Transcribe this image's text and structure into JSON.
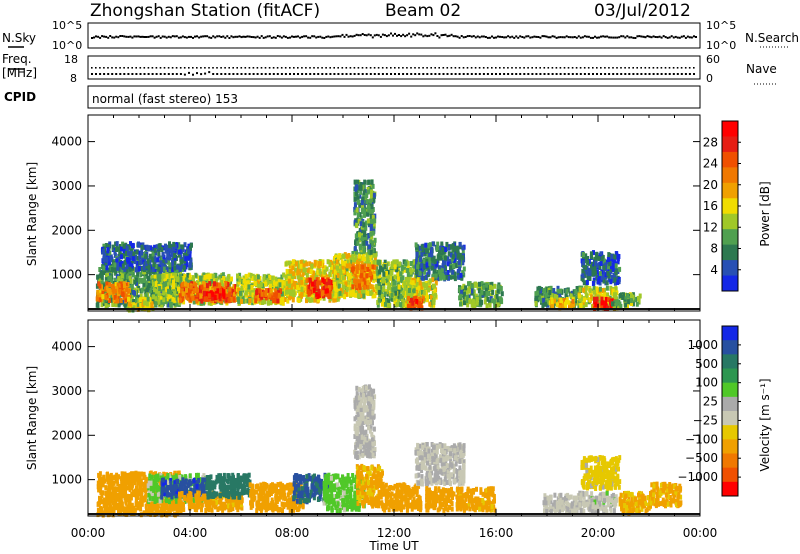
{
  "header": {
    "station_title": "Zhongshan Station (fitACF)",
    "beam_label": "Beam 02",
    "date": "03/Jul/2012"
  },
  "noise_panel": {
    "left_label": "N.Sky",
    "right_label": "N.Search",
    "tick_top": "10^5",
    "tick_bottom": "10^0"
  },
  "freq_panel": {
    "left_label_line1": "Freq.",
    "left_label_line2": "[MHz]",
    "left_tick_top": "18",
    "left_tick_bottom": "8",
    "right_label": "Nave",
    "right_tick_top": "60",
    "right_tick_bottom": "0"
  },
  "cpid_panel": {
    "label": "CPID",
    "mode_text": "normal (fast stereo) 153"
  },
  "colors": {
    "power_scale": [
      "#1428e6",
      "#2850b4",
      "#2d7850",
      "#50a050",
      "#a0c828",
      "#f0dc00",
      "#f0a000",
      "#f07800",
      "#f05000",
      "#e61e14",
      "#ff0000"
    ],
    "velocity_scale": [
      "#ff0000",
      "#f05000",
      "#f07800",
      "#f0a000",
      "#e6c800",
      "#c8c8b4",
      "#aaaaaa",
      "#50c828",
      "#2d9650",
      "#287864",
      "#2850a0",
      "#1428e6"
    ]
  },
  "chart_data": [
    {
      "type": "heatmap",
      "name": "power",
      "ylabel": "Slant Range [km]",
      "xlabel": "",
      "x_ticks": [
        "00:00",
        "04:00",
        "08:00",
        "12:00",
        "16:00",
        "20:00",
        "00:00"
      ],
      "y_ticks": [
        "1000",
        "2000",
        "3000",
        "4000"
      ],
      "ylim": [
        180,
        4600
      ],
      "colorbar_label": "Power [dB]",
      "colorbar_ticks": [
        "4",
        "8",
        "12",
        "16",
        "20",
        "24",
        "28"
      ],
      "colorbar_range": [
        0,
        30
      ],
      "clusters": [
        {
          "t0": 0.3,
          "t1": 3.6,
          "r0": 300,
          "r1": 1150,
          "v": 9
        },
        {
          "t0": 0.3,
          "t1": 1.6,
          "r0": 400,
          "r1": 800,
          "v": 20
        },
        {
          "t0": 1.5,
          "t1": 2.6,
          "r0": 200,
          "r1": 450,
          "v": 14
        },
        {
          "t0": 2.5,
          "t1": 5.6,
          "r0": 350,
          "r1": 1000,
          "v": 12
        },
        {
          "t0": 3.5,
          "t1": 5.8,
          "r0": 400,
          "r1": 800,
          "v": 22
        },
        {
          "t0": 4.5,
          "t1": 5.3,
          "r0": 450,
          "r1": 650,
          "v": 27
        },
        {
          "t0": 5.8,
          "t1": 7.7,
          "r0": 350,
          "r1": 1000,
          "v": 13
        },
        {
          "t0": 6.5,
          "t1": 7.5,
          "r0": 400,
          "r1": 650,
          "v": 22
        },
        {
          "t0": 7.7,
          "t1": 9.8,
          "r0": 400,
          "r1": 1300,
          "v": 15
        },
        {
          "t0": 8.5,
          "t1": 9.5,
          "r0": 500,
          "r1": 900,
          "v": 25
        },
        {
          "t0": 9.6,
          "t1": 11.3,
          "r0": 500,
          "r1": 1500,
          "v": 14
        },
        {
          "t0": 10.3,
          "t1": 11.2,
          "r0": 700,
          "r1": 1200,
          "v": 20
        },
        {
          "t0": 11.3,
          "t1": 13.0,
          "r0": 300,
          "r1": 1300,
          "v": 11
        },
        {
          "t0": 12.8,
          "t1": 14.7,
          "r0": 900,
          "r1": 1700,
          "v": 6
        },
        {
          "t0": 12.3,
          "t1": 13.6,
          "r0": 300,
          "r1": 900,
          "v": 14
        },
        {
          "t0": 12.5,
          "t1": 13.1,
          "r0": 250,
          "r1": 500,
          "v": 24
        },
        {
          "t0": 14.5,
          "t1": 16.2,
          "r0": 300,
          "r1": 800,
          "v": 9
        },
        {
          "t0": 17.5,
          "t1": 19.3,
          "r0": 300,
          "r1": 700,
          "v": 8
        },
        {
          "t0": 18.0,
          "t1": 19.0,
          "r0": 250,
          "r1": 450,
          "v": 18
        },
        {
          "t0": 19.3,
          "t1": 20.8,
          "r0": 800,
          "r1": 1500,
          "v": 5
        },
        {
          "t0": 19.2,
          "t1": 20.7,
          "r0": 250,
          "r1": 700,
          "v": 14
        },
        {
          "t0": 19.8,
          "t1": 20.6,
          "r0": 230,
          "r1": 450,
          "v": 27
        },
        {
          "t0": 20.5,
          "t1": 21.6,
          "r0": 250,
          "r1": 550,
          "v": 10
        },
        {
          "t0": 10.4,
          "t1": 11.2,
          "r0": 1500,
          "r1": 3100,
          "v": 8
        },
        {
          "t0": 0.5,
          "t1": 4.0,
          "r0": 1100,
          "r1": 1700,
          "v": 5
        }
      ]
    },
    {
      "type": "heatmap",
      "name": "velocity",
      "ylabel": "Slant Range [km]",
      "xlabel": "Time UT",
      "x_ticks": [
        "00:00",
        "04:00",
        "08:00",
        "12:00",
        "16:00",
        "20:00",
        "00:00"
      ],
      "y_ticks": [
        "1000",
        "2000",
        "3000",
        "4000"
      ],
      "ylim": [
        180,
        4600
      ],
      "colorbar_label": "Velocity [m s⁻¹]",
      "colorbar_ticks": [
        "1000",
        "500",
        "100",
        "25",
        "−25",
        "−100",
        "−500",
        "−1000"
      ],
      "clusters": [
        {
          "t0": 0.3,
          "t1": 3.6,
          "r0": 200,
          "r1": 1150,
          "v": -200
        },
        {
          "t0": 2.3,
          "t1": 4.6,
          "r0": 500,
          "r1": 1100,
          "v": 40
        },
        {
          "t0": 2.8,
          "t1": 4.6,
          "r0": 600,
          "r1": 1000,
          "v": 800
        },
        {
          "t0": 3.5,
          "t1": 6.0,
          "r0": 300,
          "r1": 700,
          "v": -150
        },
        {
          "t0": 4.6,
          "t1": 6.3,
          "r0": 600,
          "r1": 1100,
          "v": 300
        },
        {
          "t0": 6.3,
          "t1": 8.4,
          "r0": 300,
          "r1": 900,
          "v": -200
        },
        {
          "t0": 8.0,
          "t1": 9.5,
          "r0": 500,
          "r1": 1100,
          "v": 600
        },
        {
          "t0": 9.2,
          "t1": 10.8,
          "r0": 300,
          "r1": 1100,
          "v": 50
        },
        {
          "t0": 10.5,
          "t1": 11.5,
          "r0": 400,
          "r1": 1300,
          "v": -120
        },
        {
          "t0": 10.4,
          "t1": 11.2,
          "r0": 1500,
          "r1": 3100,
          "v": 0
        },
        {
          "t0": 11.5,
          "t1": 13.0,
          "r0": 300,
          "r1": 900,
          "v": -200
        },
        {
          "t0": 12.8,
          "t1": 14.7,
          "r0": 900,
          "r1": 1800,
          "v": 5
        },
        {
          "t0": 13.2,
          "t1": 14.3,
          "r0": 300,
          "r1": 800,
          "v": -250
        },
        {
          "t0": 14.4,
          "t1": 15.9,
          "r0": 300,
          "r1": 800,
          "v": -150
        },
        {
          "t0": 17.8,
          "t1": 19.2,
          "r0": 250,
          "r1": 650,
          "v": 0
        },
        {
          "t0": 19.2,
          "t1": 20.7,
          "r0": 250,
          "r1": 700,
          "v": 10
        },
        {
          "t0": 19.3,
          "t1": 20.8,
          "r0": 800,
          "r1": 1500,
          "v": -50
        },
        {
          "t0": 20.8,
          "t1": 22.0,
          "r0": 250,
          "r1": 700,
          "v": -120
        },
        {
          "t0": 22.0,
          "t1": 23.2,
          "r0": 400,
          "r1": 900,
          "v": -120
        }
      ]
    }
  ]
}
